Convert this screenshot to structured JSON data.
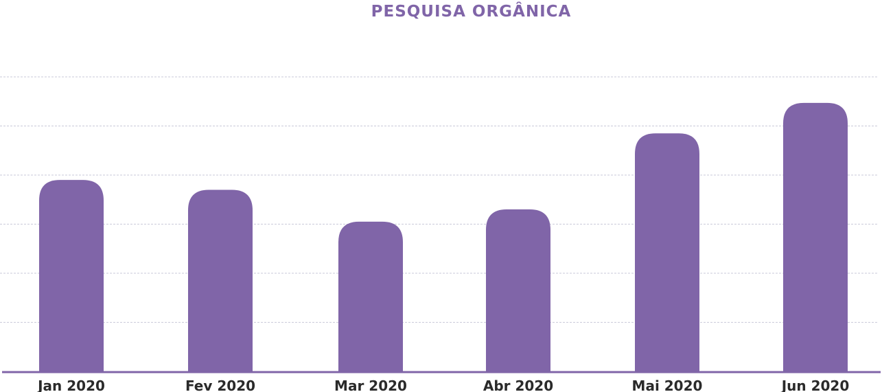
{
  "chart_data": {
    "type": "bar",
    "title": "PESQUISA ORGÂNICA",
    "categories": [
      "Jan 2020",
      "Fev 2020",
      "Mar 2020",
      "Abr 2020",
      "Mai 2020",
      "Jun 2020"
    ],
    "values": [
      3.9,
      3.7,
      3.05,
      3.3,
      4.85,
      5.47
    ],
    "ylim": [
      0,
      6
    ],
    "grid": true,
    "colors": {
      "bar": "#8065a8",
      "title": "#8065a8",
      "grid": "#c9c9d9",
      "axis": "#8065a8",
      "tick_label": "#2a2a2a"
    }
  }
}
